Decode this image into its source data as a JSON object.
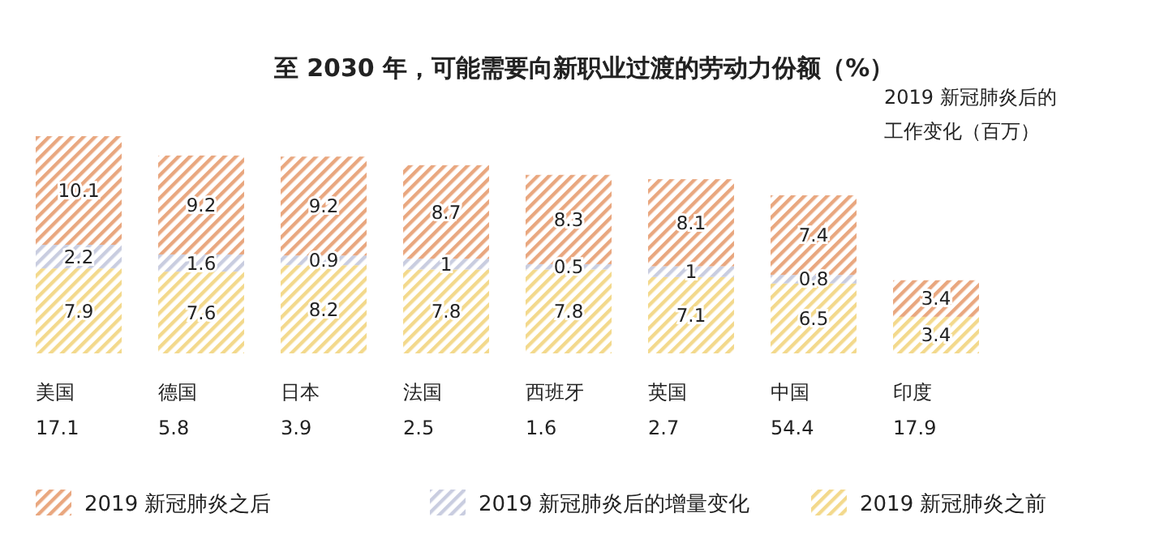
{
  "chart_data": {
    "type": "bar",
    "stacked": true,
    "data_labels": true,
    "legend": "bottom",
    "title": "至 2030 年，可能需要向新职业过渡的劳动力份额（%）",
    "annotations": [
      "2019 新冠肺炎后的",
      "工作变化（百万）"
    ],
    "categories": [
      "美国\n17.1",
      "德国\n5.8",
      "日本\n3.9",
      "法国\n2.5",
      "西班牙\n1.6",
      "英国\n2.7",
      "中国\n54.4",
      "印度\n17.9"
    ],
    "series": [
      {
        "name": "2019 新冠肺炎之前",
        "color": "#f3d98c",
        "values": [
          7.9,
          7.6,
          8.2,
          7.8,
          7.8,
          7.1,
          6.5,
          3.4
        ]
      },
      {
        "name": "2019 新冠肺炎后的增量变化",
        "color": "#c9cde0",
        "values": [
          2.2,
          1.6,
          0.9,
          1,
          0.5,
          1,
          0.8,
          null
        ]
      },
      {
        "name": "2019 新冠肺炎之后",
        "color": "#e9a77f",
        "values": [
          10.1,
          9.2,
          9.2,
          8.7,
          8.3,
          8.1,
          7.4,
          3.4
        ]
      }
    ]
  }
}
